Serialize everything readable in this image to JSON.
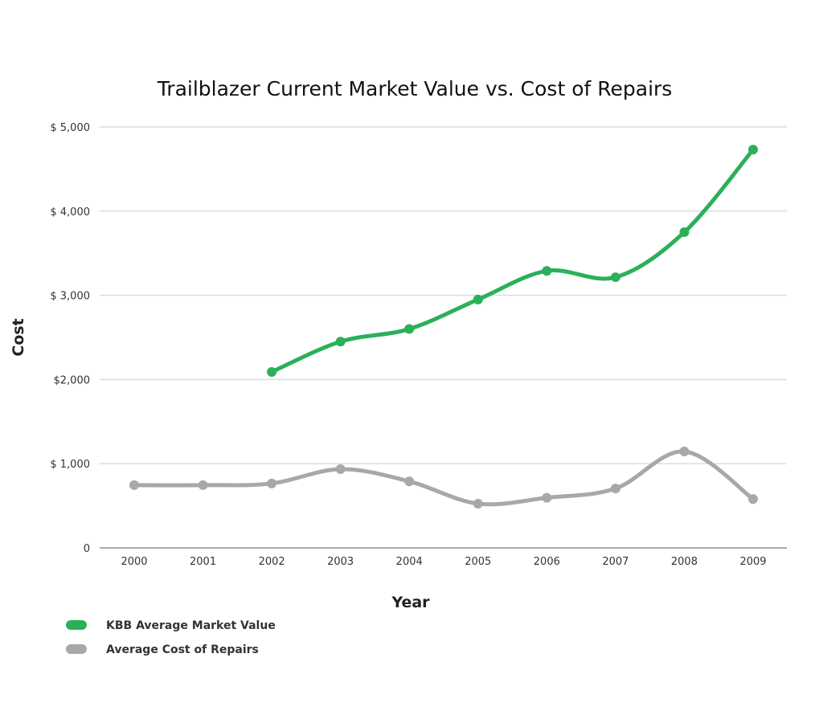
{
  "chart_data": {
    "type": "line",
    "title": "Trailblazer Current Market Value vs. Cost of Repairs",
    "xlabel": "Year",
    "ylabel": "Cost",
    "x": [
      "2000",
      "2001",
      "2002",
      "2003",
      "2004",
      "2005",
      "2006",
      "2007",
      "2008",
      "2009"
    ],
    "yticks": [
      0,
      1000,
      2000,
      3000,
      4000,
      5000
    ],
    "ytick_labels": [
      "0",
      "$ 1,000",
      "$2,000",
      "$ 3,000",
      "$ 4,000",
      "$ 5,000"
    ],
    "ylim": [
      0,
      5000
    ],
    "grid": true,
    "legend_placement": "bottom-left",
    "series": [
      {
        "name": "KBB Average Market Value",
        "color": "#2bb05a",
        "values": [
          null,
          null,
          2090,
          2450,
          2600,
          2950,
          3290,
          3215,
          3750,
          4730
        ]
      },
      {
        "name": "Average Cost of Repairs",
        "color": "#a8a8a8",
        "values": [
          745,
          745,
          765,
          935,
          790,
          525,
          595,
          705,
          1145,
          580
        ]
      }
    ]
  }
}
